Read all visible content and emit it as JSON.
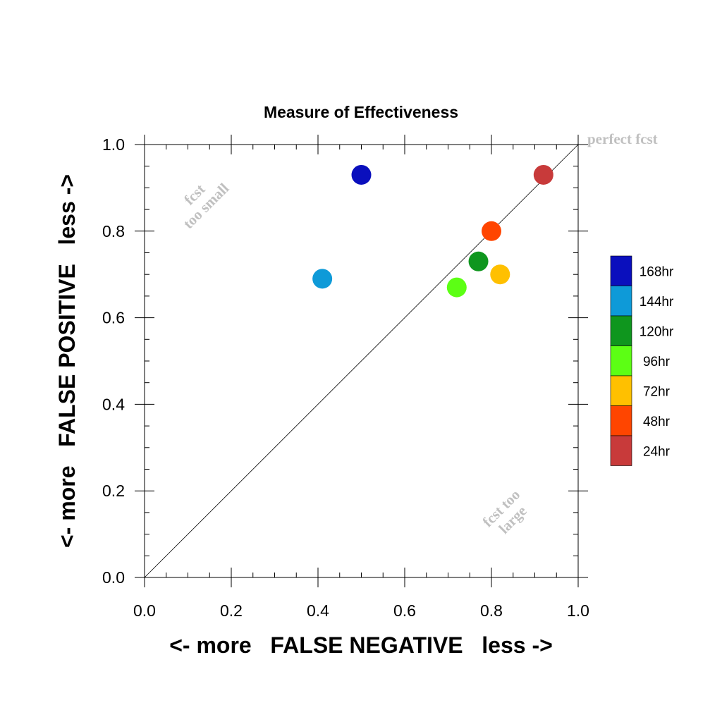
{
  "chart_data": {
    "type": "scatter",
    "title": "Measure of Effectiveness",
    "xlabel": "<- more   FALSE NEGATIVE   less ->",
    "ylabel": "<- more   FALSE POSITIVE   less ->",
    "xlim": [
      0,
      1
    ],
    "ylim": [
      0,
      1
    ],
    "x_ticks": [
      "0.0",
      "0.2",
      "0.4",
      "0.6",
      "0.8",
      "1.0"
    ],
    "y_ticks": [
      "0.0",
      "0.2",
      "0.4",
      "0.6",
      "0.8",
      "1.0"
    ],
    "grid": false,
    "diagonal_line": true,
    "annotations": {
      "top_right": "perfect fcst",
      "upper_left_line1": "fcst",
      "upper_left_line2": "too small",
      "lower_right_line1": "fcst too",
      "lower_right_line2": "large"
    },
    "legend_position": "right",
    "series": [
      {
        "name": "168hr",
        "color": "#0a0fbd",
        "x": 0.5,
        "y": 0.93
      },
      {
        "name": "144hr",
        "color": "#0e9ad8",
        "x": 0.41,
        "y": 0.69
      },
      {
        "name": "120hr",
        "color": "#0f961e",
        "x": 0.77,
        "y": 0.73
      },
      {
        "name": "96hr",
        "color": "#5cff14",
        "x": 0.72,
        "y": 0.67
      },
      {
        "name": "72hr",
        "color": "#ffc000",
        "x": 0.82,
        "y": 0.7
      },
      {
        "name": "48hr",
        "color": "#ff4500",
        "x": 0.8,
        "y": 0.8
      },
      {
        "name": "24hr",
        "color": "#c83a3a",
        "x": 0.92,
        "y": 0.93
      }
    ]
  }
}
